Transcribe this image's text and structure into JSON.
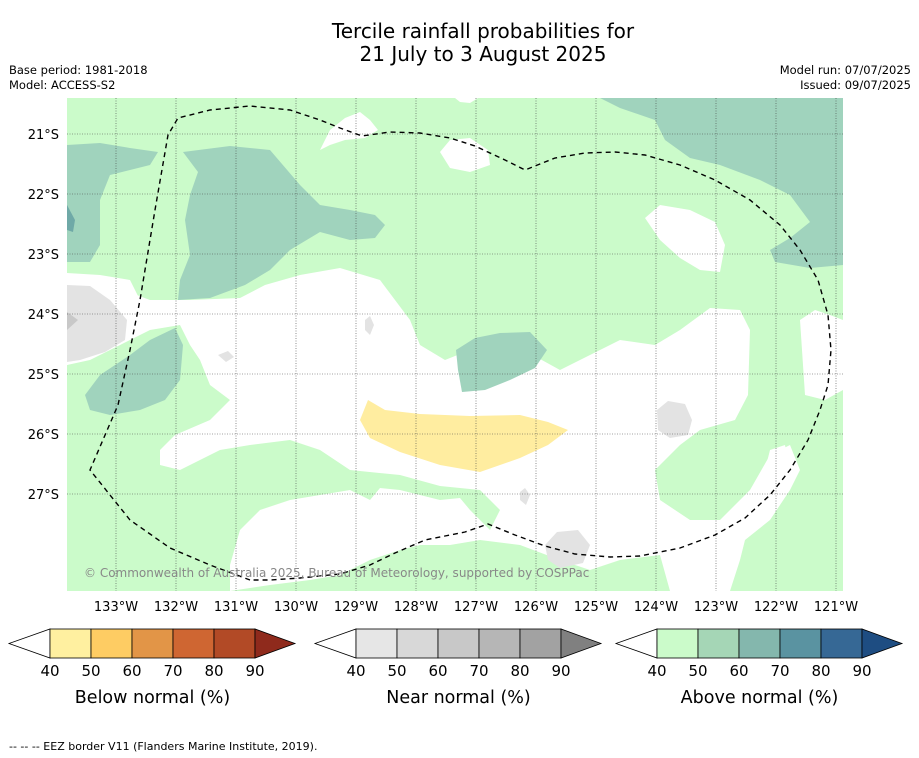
{
  "title_line1": "Tercile rainfall probabilities for",
  "title_line2": "21 July to 3 August 2025",
  "meta_left": [
    "Base period: 1981-2018",
    "Model: ACCESS-S2"
  ],
  "meta_right": [
    "Model run: 07/07/2025",
    "Issued: 09/07/2025"
  ],
  "lat_labels": [
    "21°S",
    "22°S",
    "23°S",
    "24°S",
    "25°S",
    "26°S",
    "27°S"
  ],
  "lon_labels": [
    "133°W",
    "132°W",
    "131°W",
    "130°W",
    "129°W",
    "128°W",
    "127°W",
    "126°W",
    "125°W",
    "124°W",
    "123°W",
    "122°W",
    "121°W"
  ],
  "copyright": "© Commonwealth of Australia 2025, Bureau of Meteorology, supported by COSPPac",
  "colorbars": [
    {
      "title": "Below normal (%)",
      "ticks": [
        "40",
        "50",
        "60",
        "70",
        "80",
        "90"
      ],
      "colors": [
        "#ffffff",
        "#fff0a0",
        "#fecc63",
        "#e29547",
        "#cf6632",
        "#b24a26",
        "#8f2a1c"
      ]
    },
    {
      "title": "Near normal (%)",
      "ticks": [
        "40",
        "50",
        "60",
        "70",
        "80",
        "90"
      ],
      "colors": [
        "#ffffff",
        "#e6e6e6",
        "#d8d8d8",
        "#c8c8c8",
        "#b6b6b6",
        "#a2a2a2",
        "#808080"
      ]
    },
    {
      "title": "Above normal (%)",
      "ticks": [
        "40",
        "50",
        "60",
        "70",
        "80",
        "90"
      ],
      "colors": [
        "#ffffff",
        "#cbfbca",
        "#a5d6b6",
        "#84b7ad",
        "#5a93a1",
        "#366895",
        "#1e4d82"
      ]
    }
  ],
  "map_colors": {
    "above_40_50": "#cbfbca",
    "above_50_60": "#a0d3bd",
    "below_40_50": "#ffeda0",
    "near_40_50": "#e3e3e3",
    "no_dominant": "#ffffff",
    "eez_border": "#000000"
  },
  "footer": "-- -- -- EEZ border V11 (Flanders Marine Institute, 2019)."
}
